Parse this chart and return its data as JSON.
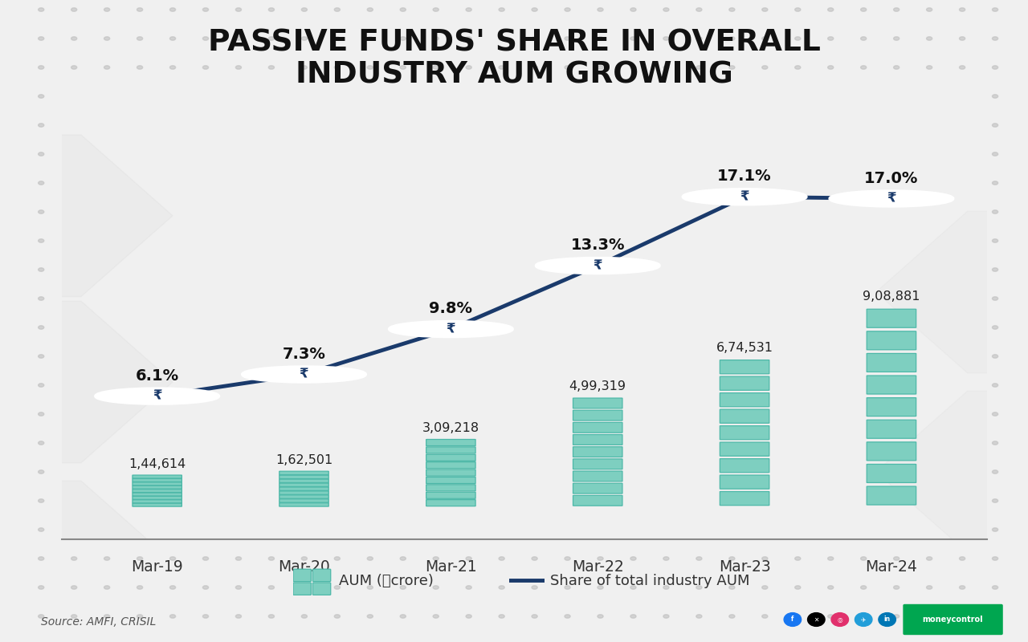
{
  "title_line1": "PASSIVE FUNDS' SHARE IN OVERALL",
  "title_line2": "INDUSTRY AUM GROWING",
  "categories": [
    "Mar-19",
    "Mar-20",
    "Mar-21",
    "Mar-22",
    "Mar-23",
    "Mar-24"
  ],
  "x_positions": [
    0,
    1,
    2,
    3,
    4,
    5
  ],
  "aum_values": [
    144614,
    162501,
    309218,
    499319,
    674531,
    908881
  ],
  "aum_labels": [
    "1,44,614",
    "1,62,501",
    "3,09,218",
    "4,99,319",
    "6,74,531",
    "9,08,881"
  ],
  "share_values": [
    6.1,
    7.3,
    9.8,
    13.3,
    17.1,
    17.0
  ],
  "share_labels": [
    "6.1%",
    "7.3%",
    "9.8%",
    "13.3%",
    "17.1%",
    "17.0%"
  ],
  "line_color": "#1a3a6b",
  "bar_color_fill": "#7ecfc0",
  "bar_color_border": "#4db8a8",
  "bg_color": "#f0f0f0",
  "title_color": "#111111",
  "source_text": "Source: AMFI, CRISIL",
  "legend_bar_label": "AUM (⃙crore)",
  "legend_line_label": "Share of total industry AUM",
  "rupee_symbol": "₹"
}
